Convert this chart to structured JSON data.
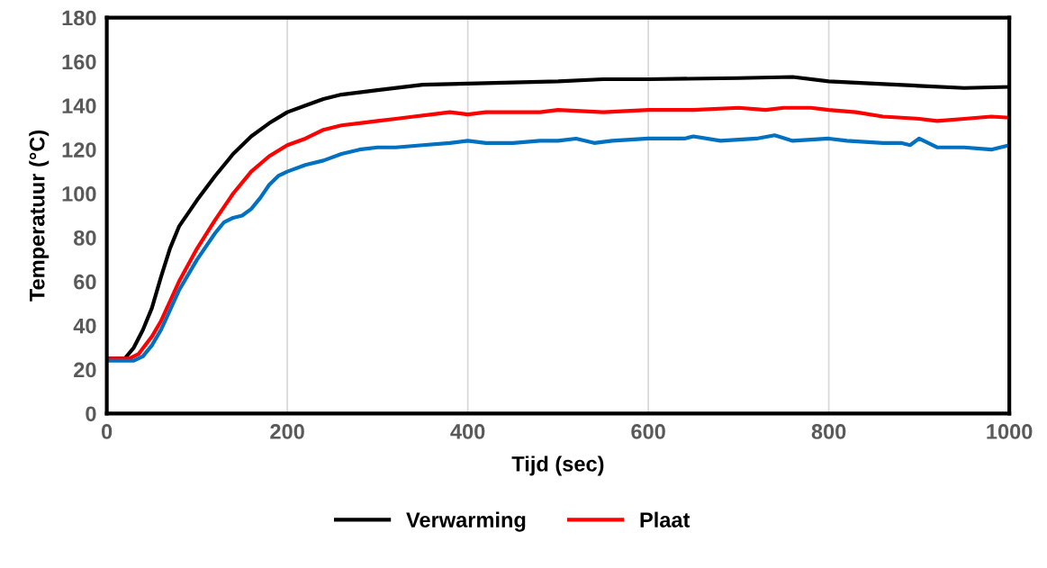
{
  "chart_data": {
    "type": "line",
    "xlabel": "Tijd (sec)",
    "ylabel": "Temperatuur (°C)",
    "xlim": [
      0,
      1000
    ],
    "xticks": [
      0,
      200,
      400,
      600,
      800,
      1000
    ],
    "ylim": [
      0,
      180
    ],
    "yticks": [
      0,
      20,
      40,
      60,
      80,
      100,
      120,
      140,
      160,
      180
    ],
    "grid": "x",
    "legend": "bottom",
    "marker": "none",
    "line_style": "solid",
    "series": [
      {
        "name": "Verwarming",
        "color": "#000000",
        "x": [
          0,
          20,
          30,
          40,
          50,
          60,
          70,
          80,
          100,
          120,
          140,
          160,
          180,
          200,
          220,
          240,
          260,
          300,
          350,
          400,
          500,
          550,
          600,
          700,
          760,
          800,
          850,
          900,
          950,
          1000
        ],
        "values": [
          25,
          25,
          30,
          38,
          48,
          62,
          75,
          85,
          97,
          108,
          118,
          126,
          132,
          137,
          140,
          143,
          145,
          147,
          149.5,
          150,
          151,
          152,
          152,
          152.5,
          153,
          151,
          150,
          149,
          148,
          148.5
        ]
      },
      {
        "name": "Plaat",
        "color": "#ff0000",
        "x": [
          0,
          25,
          35,
          50,
          60,
          80,
          100,
          120,
          140,
          160,
          180,
          200,
          220,
          240,
          260,
          280,
          300,
          320,
          340,
          360,
          380,
          400,
          420,
          450,
          480,
          500,
          550,
          600,
          650,
          700,
          730,
          750,
          780,
          800,
          830,
          860,
          900,
          920,
          950,
          980,
          1000
        ],
        "values": [
          25,
          25,
          27,
          35,
          42,
          60,
          75,
          88,
          100,
          110,
          117,
          122,
          125,
          129,
          131,
          132,
          133,
          134,
          135,
          136,
          137,
          136,
          137,
          137,
          137,
          138,
          137,
          138,
          138,
          139,
          138,
          139,
          139,
          138,
          137,
          135,
          134,
          133,
          134,
          135,
          134.5
        ]
      },
      {
        "color": "#0070c0",
        "x": [
          0,
          30,
          40,
          50,
          60,
          80,
          100,
          120,
          130,
          140,
          150,
          160,
          170,
          180,
          190,
          200,
          220,
          240,
          260,
          280,
          300,
          320,
          350,
          380,
          400,
          420,
          450,
          480,
          500,
          520,
          540,
          560,
          600,
          640,
          650,
          680,
          720,
          740,
          760,
          800,
          820,
          860,
          880,
          890,
          900,
          920,
          950,
          980,
          1000
        ],
        "values": [
          24,
          24,
          26,
          31,
          38,
          56,
          70,
          82,
          87,
          89,
          90,
          93,
          98,
          104,
          108,
          110,
          113,
          115,
          118,
          120,
          121,
          121,
          122,
          123,
          124,
          123,
          123,
          124,
          124,
          125,
          123,
          124,
          125,
          125,
          126,
          124,
          125,
          126.5,
          124,
          125,
          124,
          123,
          123,
          122,
          125,
          121,
          121,
          120,
          122
        ]
      }
    ]
  }
}
